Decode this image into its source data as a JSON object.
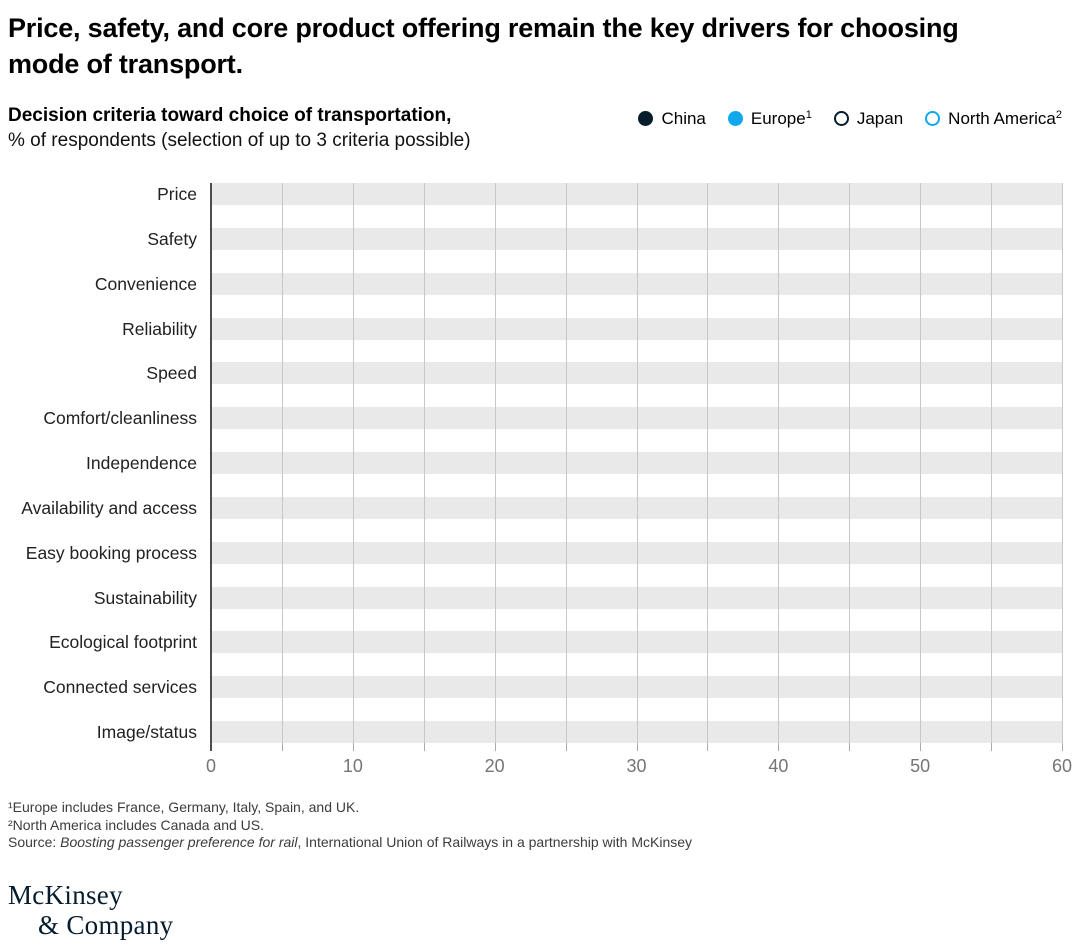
{
  "header": {
    "title": "Price, safety, and core product offering remain the key drivers for choosing mode of transport.",
    "subtitle_bold": "Decision criteria toward choice of transportation,",
    "subtitle_regular": "% of respondents (selection of up to 3 criteria possible)"
  },
  "legend": {
    "items": [
      {
        "label": "China",
        "sup": "",
        "fill": "#051c2c",
        "border": "#051c2c"
      },
      {
        "label": "Europe",
        "sup": "1",
        "fill": "#0fa8ec",
        "border": "#0fa8ec"
      },
      {
        "label": "Japan",
        "sup": "",
        "fill": "#ffffff",
        "border": "#051c2c"
      },
      {
        "label": "North America",
        "sup": "2",
        "fill": "#ffffff",
        "border": "#0fa8ec"
      }
    ]
  },
  "chart_data": {
    "type": "bar",
    "orientation": "horizontal",
    "title": "Decision criteria toward choice of transportation, % of respondents (selection of up to 3 criteria possible)",
    "categories": [
      "Price",
      "Safety",
      "Convenience",
      "Reliability",
      "Speed",
      "Comfort/cleanliness",
      "Independence",
      "Availability and access",
      "Easy booking process",
      "Sustainability",
      "Ecological footprint",
      "Connected services",
      "Image/status"
    ],
    "series": [
      {
        "name": "China",
        "values": []
      },
      {
        "name": "Europe¹",
        "values": []
      },
      {
        "name": "Japan",
        "values": []
      },
      {
        "name": "North America²",
        "values": []
      }
    ],
    "xlim": [
      0,
      60
    ],
    "x_major_ticks": [
      0,
      10,
      20,
      30,
      40,
      50,
      60
    ],
    "x_minor_step": 5,
    "grid": "vertical gridlines every 5 units over gray category bands",
    "note": "only empty gray background bands are rendered; no data point values are visible in the screenshot"
  },
  "colors": {
    "band": "#e9e9e9",
    "gridline": "#c7c7c7",
    "axis": "#4d4d4d",
    "tick_label": "#757575",
    "accent_dark": "#051c2c",
    "accent_cyan": "#0fa8ec"
  },
  "footnotes": {
    "line1": "¹Europe includes France, Germany, Italy, Spain, and UK.",
    "line2": "²North America includes Canada and US.",
    "source_prefix": "Source: ",
    "source_italic": "Boosting passenger preference for rail",
    "source_rest": ", International Union of Railways in a partnership with McKinsey"
  },
  "logo": {
    "line1": "McKinsey",
    "line2": "& Company"
  }
}
